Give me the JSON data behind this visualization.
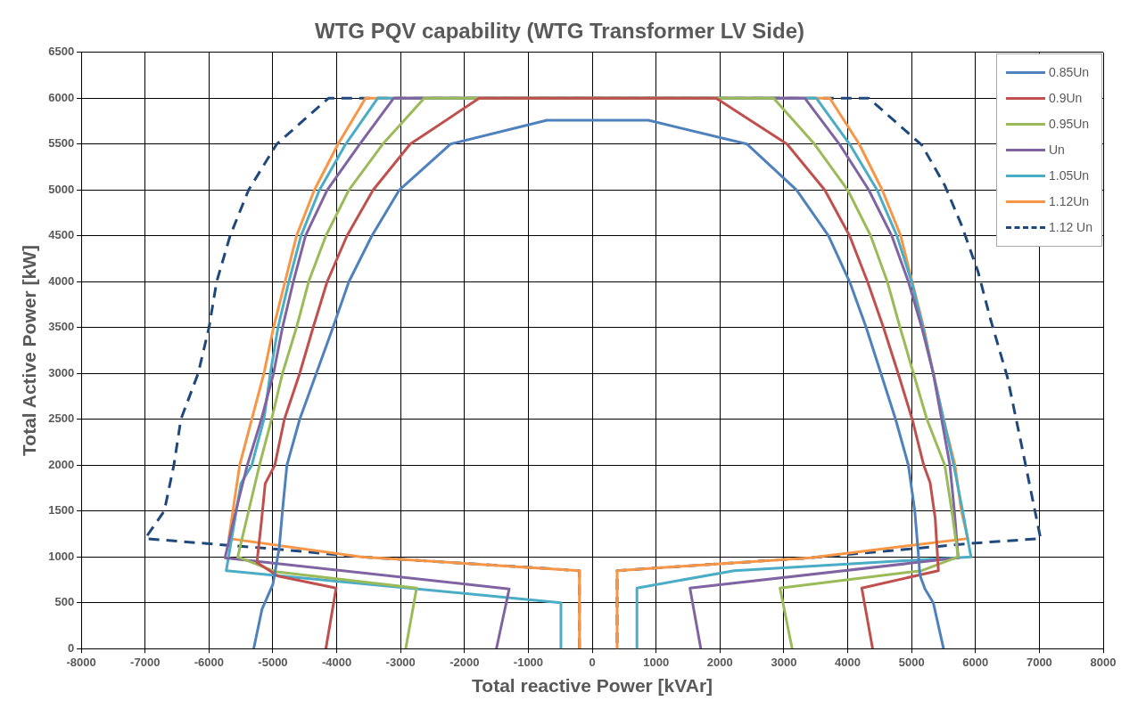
{
  "chart_data": {
    "type": "line",
    "title": "WTG PQV capability (WTG Transformer LV Side)",
    "xlabel": "Total reactive Power [kVAr]",
    "ylabel": "Total Active Power [kW]",
    "xlim": [
      -8000,
      8000
    ],
    "xticks": [
      -8000,
      -7000,
      -6000,
      -5000,
      -4000,
      -3000,
      -2000,
      -1000,
      0,
      1000,
      2000,
      3000,
      4000,
      5000,
      6000,
      7000,
      8000
    ],
    "ylim": [
      0,
      6500
    ],
    "yticks": [
      0,
      500,
      1000,
      1500,
      2000,
      2500,
      3000,
      3500,
      4000,
      4500,
      5000,
      5500,
      6000,
      6500
    ],
    "grid": true,
    "legend": "top right",
    "marker": "none",
    "series": [
      {
        "name": "0.85Un",
        "color": "#4f81bd",
        "line_style": "solid",
        "x": [
          -5300,
          -5170,
          -5000,
          -4900,
          -4850,
          -4780,
          -4580,
          -4320,
          -4060,
          -3810,
          -3450,
          -3020,
          -2220,
          -710,
          880,
          2425,
          3200,
          3700,
          4030,
          4290,
          4520,
          4750,
          4950,
          5050,
          5110,
          5130,
          5210,
          5340,
          5500
        ],
        "values": [
          0,
          430,
          700,
          1100,
          1500,
          2000,
          2500,
          3000,
          3500,
          4000,
          4500,
          5000,
          5500,
          5760,
          5760,
          5500,
          5000,
          4500,
          4000,
          3500,
          3000,
          2500,
          2000,
          1500,
          1000,
          800,
          650,
          500,
          0
        ]
      },
      {
        "name": "0.9Un",
        "color": "#c0504d",
        "line_style": "solid",
        "x": [
          -4170,
          -4010,
          -4920,
          -5250,
          -5180,
          -5120,
          -4970,
          -4820,
          -4580,
          -4370,
          -4150,
          -3840,
          -3430,
          -2850,
          -1770,
          1940,
          3050,
          3640,
          4030,
          4310,
          4560,
          4790,
          5010,
          5190,
          5290,
          5370,
          5420,
          4220,
          4390
        ],
        "values": [
          0,
          660,
          790,
          940,
          1380,
          1800,
          2000,
          2500,
          3000,
          3500,
          4000,
          4500,
          5000,
          5500,
          6000,
          6000,
          5500,
          5000,
          4500,
          4000,
          3500,
          3000,
          2500,
          2000,
          1810,
          1420,
          850,
          660,
          0
        ]
      },
      {
        "name": "0.95Un",
        "color": "#9bbb59",
        "line_style": "solid",
        "x": [
          -2920,
          -2750,
          -4970,
          -5550,
          -5380,
          -5210,
          -5020,
          -4850,
          -4630,
          -4440,
          -4170,
          -3810,
          -3280,
          -2630,
          2840,
          3480,
          4000,
          4360,
          4620,
          4820,
          5030,
          5240,
          5520,
          5630,
          5730,
          5160,
          2940,
          3130
        ],
        "values": [
          0,
          660,
          840,
          1000,
          1500,
          2000,
          2500,
          3000,
          3500,
          4000,
          4500,
          5000,
          5500,
          6000,
          6000,
          5500,
          5000,
          4500,
          4000,
          3500,
          3000,
          2500,
          2000,
          1500,
          1000,
          850,
          660,
          0
        ]
      },
      {
        "name": "Un",
        "color": "#8064a2",
        "line_style": "solid",
        "x": [
          -1500,
          -1300,
          -5750,
          -5580,
          -5400,
          -5180,
          -4990,
          -4850,
          -4680,
          -4490,
          -4150,
          -3640,
          -3110,
          3330,
          3870,
          4330,
          4690,
          4950,
          5160,
          5340,
          5470,
          5600,
          5670,
          5730,
          1530,
          1700
        ],
        "values": [
          0,
          650,
          990,
          1500,
          2000,
          2500,
          3000,
          3500,
          4000,
          4500,
          5000,
          5500,
          6000,
          6000,
          5500,
          5000,
          4500,
          4000,
          3500,
          3000,
          2500,
          2000,
          1500,
          990,
          660,
          0
        ]
      },
      {
        "name": "1.05Un",
        "color": "#4bacc6",
        "line_style": "solid",
        "x": [
          -500,
          -490,
          -5730,
          -5500,
          -5330,
          -5140,
          -5040,
          -4920,
          -4750,
          -4560,
          -4270,
          -3860,
          -3360,
          3510,
          4030,
          4460,
          4770,
          5000,
          5180,
          5340,
          5500,
          5660,
          5800,
          5930,
          2220,
          700,
          700
        ],
        "values": [
          0,
          500,
          850,
          1800,
          2000,
          2500,
          3000,
          3500,
          4000,
          4500,
          5000,
          5500,
          6000,
          6000,
          5500,
          5000,
          4500,
          4000,
          3500,
          3000,
          2500,
          2000,
          1500,
          1000,
          850,
          660,
          0
        ]
      },
      {
        "name": "1.12Un",
        "color": "#f79646",
        "line_style": "solid",
        "x": [
          -200,
          -200,
          -3620,
          -5690,
          -5520,
          -5330,
          -5140,
          -4990,
          -4810,
          -4630,
          -4350,
          -3980,
          -3550,
          3720,
          4180,
          4540,
          4830,
          5010,
          5190,
          5340,
          5500,
          5680,
          5780,
          5880,
          3410,
          390,
          390
        ],
        "values": [
          0,
          850,
          1000,
          1200,
          2000,
          2500,
          3000,
          3500,
          4000,
          4500,
          5000,
          5500,
          6000,
          6000,
          5500,
          5000,
          4500,
          4000,
          3500,
          3000,
          2500,
          2000,
          1500,
          1200,
          990,
          850,
          0
        ]
      },
      {
        "name": "1.12 Un",
        "color": "#1f497d",
        "line_style": "dashed",
        "x": [
          -200,
          -200,
          -3620,
          -4870,
          -7000,
          -6700,
          -6550,
          -6440,
          -6170,
          -6000,
          -5880,
          -5670,
          -5380,
          -4940,
          -4130,
          4330,
          5160,
          5520,
          5780,
          6040,
          6240,
          6500,
          6730,
          7020,
          5990,
          3410,
          390,
          390
        ],
        "values": [
          0,
          850,
          1000,
          1080,
          1200,
          1500,
          2000,
          2500,
          3000,
          3500,
          4000,
          4500,
          5000,
          5500,
          6000,
          6000,
          5490,
          5050,
          4620,
          4110,
          3580,
          2960,
          2190,
          1200,
          1150,
          990,
          850,
          0
        ]
      }
    ]
  }
}
